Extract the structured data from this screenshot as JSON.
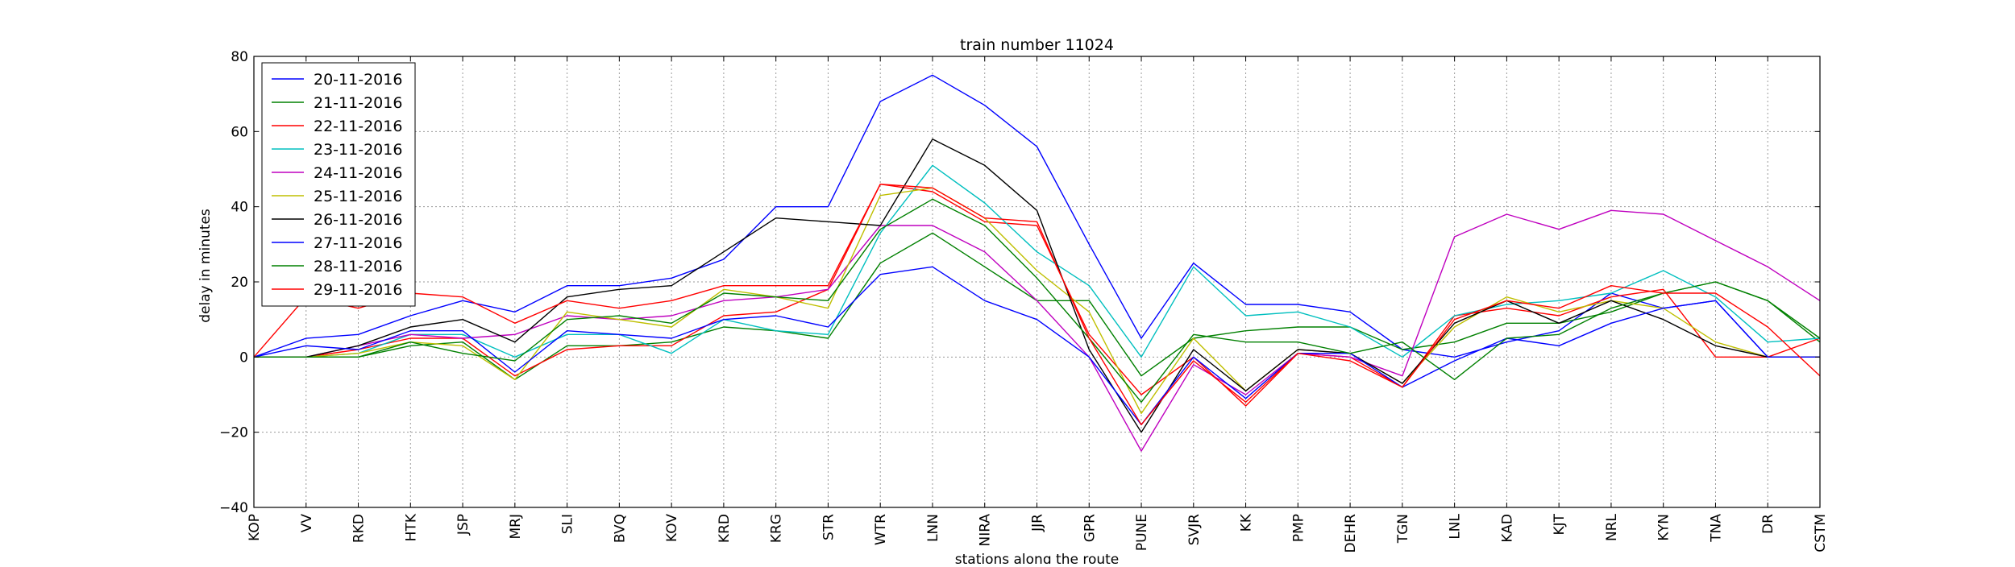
{
  "chart_data": {
    "type": "line",
    "title": "train number 11024",
    "xlabel": "stations along the route",
    "ylabel": "delay in minutes",
    "ylim": [
      -40,
      80
    ],
    "yticks": [
      80,
      60,
      40,
      20,
      0,
      -20,
      -40
    ],
    "ytick_labels": [
      "80",
      "60",
      "40",
      "20",
      "0",
      "−20",
      "−40"
    ],
    "grid": true,
    "legend_position": "top-left",
    "categories": [
      "KOP",
      "VV",
      "RKD",
      "HTK",
      "JSP",
      "MRJ",
      "SLI",
      "BVQ",
      "KOV",
      "KRD",
      "KRG",
      "STR",
      "WTR",
      "LNN",
      "NIRA",
      "JJR",
      "GPR",
      "PUNE",
      "SVJR",
      "KK",
      "PMP",
      "DEHR",
      "TGN",
      "LNL",
      "KAD",
      "KJT",
      "NRL",
      "KYN",
      "TNA",
      "DR",
      "CSTM"
    ],
    "series": [
      {
        "name": "20-11-2016",
        "color": "#0000ff",
        "values": [
          0,
          5,
          6,
          11,
          15,
          12,
          19,
          19,
          21,
          26,
          40,
          40,
          68,
          75,
          67,
          56,
          30,
          5,
          25,
          14,
          14,
          12,
          2,
          0,
          4,
          7,
          17,
          13,
          15,
          0,
          0
        ]
      },
      {
        "name": "21-11-2016",
        "color": "#008000",
        "values": [
          0,
          0,
          0,
          3,
          4,
          -6,
          3,
          3,
          4,
          8,
          7,
          5,
          25,
          33,
          24,
          15,
          15,
          -5,
          5,
          7,
          8,
          8,
          2,
          4,
          9,
          9,
          12,
          17,
          20,
          15,
          4
        ]
      },
      {
        "name": "22-11-2016",
        "color": "#ff0000",
        "values": [
          0,
          0,
          2,
          5,
          5,
          -5,
          2,
          3,
          3,
          11,
          12,
          18,
          46,
          44,
          36,
          35,
          6,
          -10,
          0,
          -13,
          1,
          0,
          -8,
          11,
          13,
          11,
          16,
          18,
          0,
          0,
          5
        ]
      },
      {
        "name": "23-11-2016",
        "color": "#00bfbf",
        "values": [
          0,
          0,
          1,
          6,
          6,
          0,
          6,
          6,
          1,
          10,
          7,
          6,
          33,
          51,
          41,
          28,
          19,
          0,
          24,
          11,
          12,
          8,
          0,
          11,
          14,
          15,
          17,
          23,
          16,
          4,
          5
        ]
      },
      {
        "name": "24-11-2016",
        "color": "#bf00bf",
        "values": [
          0,
          0,
          3,
          6,
          5,
          6,
          11,
          10,
          11,
          15,
          16,
          18,
          35,
          35,
          28,
          15,
          0,
          -25,
          -2,
          -10,
          1,
          0,
          -5,
          32,
          38,
          34,
          39,
          38,
          31,
          24,
          15
        ]
      },
      {
        "name": "25-11-2016",
        "color": "#bfbf00",
        "values": [
          0,
          0,
          1,
          4,
          3,
          -6,
          12,
          10,
          8,
          18,
          16,
          13,
          43,
          45,
          37,
          23,
          12,
          -15,
          5,
          -9,
          2,
          1,
          -7,
          8,
          16,
          12,
          15,
          13,
          4,
          0,
          0
        ]
      },
      {
        "name": "26-11-2016",
        "color": "#000000",
        "values": [
          0,
          0,
          3,
          8,
          10,
          4,
          16,
          18,
          19,
          28,
          37,
          36,
          35,
          58,
          51,
          39,
          2,
          -20,
          2,
          -9,
          2,
          1,
          -7,
          9,
          15,
          9,
          15,
          10,
          3,
          0,
          0
        ]
      },
      {
        "name": "27-11-2016",
        "color": "#0000ff",
        "values": [
          0,
          3,
          2,
          7,
          7,
          -4,
          7,
          6,
          5,
          10,
          11,
          8,
          22,
          24,
          15,
          10,
          0,
          -18,
          0,
          -11,
          1,
          1,
          -8,
          -1,
          5,
          3,
          9,
          13,
          15,
          0,
          0
        ]
      },
      {
        "name": "28-11-2016",
        "color": "#008000",
        "values": [
          0,
          0,
          0,
          4,
          1,
          -1,
          10,
          11,
          9,
          17,
          16,
          15,
          34,
          42,
          35,
          21,
          5,
          -12,
          6,
          4,
          4,
          1,
          4,
          -6,
          5,
          6,
          13,
          17,
          20,
          15,
          5
        ]
      },
      {
        "name": "29-11-2016",
        "color": "#ff0000",
        "values": [
          0,
          16,
          13,
          17,
          16,
          9,
          15,
          13,
          15,
          19,
          19,
          19,
          46,
          45,
          37,
          36,
          5,
          -18,
          -1,
          -12,
          1,
          -1,
          -8,
          10,
          15,
          13,
          19,
          17,
          17,
          8,
          -5
        ]
      }
    ]
  }
}
